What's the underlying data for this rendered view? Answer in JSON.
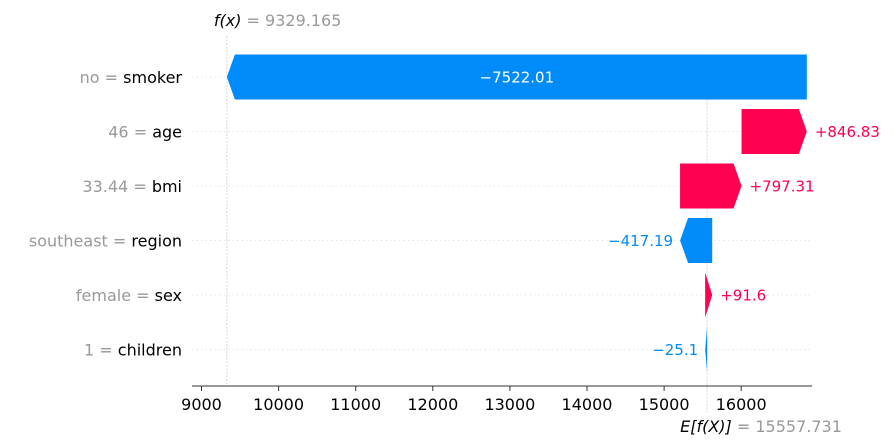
{
  "chart_data": {
    "type": "waterfall",
    "fx_label": "f(x)",
    "fx_value": "9329.165",
    "efx_label": "E[f(X)]",
    "efx_value": "15557.731",
    "base_value": 15557.731,
    "output_value": 9329.165,
    "xlim": [
      8800,
      16950
    ],
    "xticks": [
      9000,
      10000,
      11000,
      12000,
      13000,
      14000,
      15000,
      16000
    ],
    "features": [
      {
        "value": "no",
        "name": "smoker",
        "contribution": -7522.01,
        "label": "−7522.01"
      },
      {
        "value": "46",
        "name": "age",
        "contribution": 846.83,
        "label": "+846.83"
      },
      {
        "value": "33.44",
        "name": "bmi",
        "contribution": 797.31,
        "label": "+797.31"
      },
      {
        "value": "southeast",
        "name": "region",
        "contribution": -417.19,
        "label": "−417.19"
      },
      {
        "value": "female",
        "name": "sex",
        "contribution": 91.6,
        "label": "+91.6"
      },
      {
        "value": "1",
        "name": "children",
        "contribution": -25.1,
        "label": "−25.1"
      }
    ],
    "colors": {
      "positive": "#ff0051",
      "negative": "#008bfb"
    }
  }
}
